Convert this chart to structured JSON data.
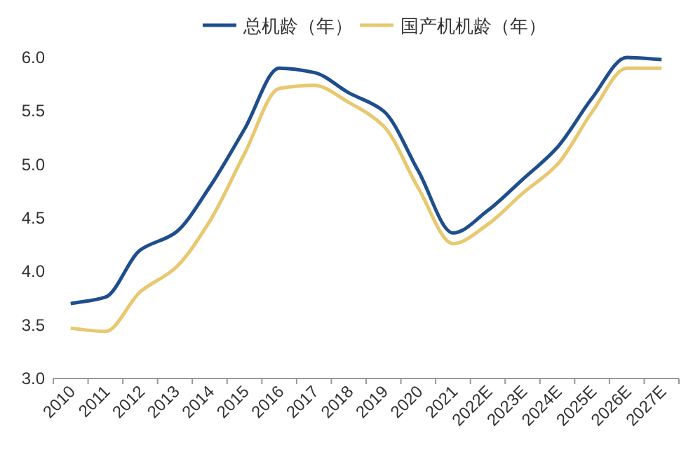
{
  "chart_data": {
    "type": "line",
    "categories": [
      "2010",
      "2011",
      "2012",
      "2013",
      "2014",
      "2015",
      "2016",
      "2017",
      "2018",
      "2019",
      "2020",
      "2021",
      "2022E",
      "2023E",
      "2024E",
      "2025E",
      "2026E",
      "2027E"
    ],
    "series": [
      {
        "name": "总机龄（年）",
        "color": "#1f4e8c",
        "values": [
          3.7,
          3.76,
          4.2,
          4.36,
          4.79,
          5.33,
          5.9,
          5.86,
          5.67,
          5.5,
          4.94,
          4.36,
          4.57,
          4.86,
          5.16,
          5.62,
          6.0,
          5.98
        ]
      },
      {
        "name": "国产机机龄（年）",
        "color": "#e8c870",
        "values": [
          3.47,
          3.44,
          3.81,
          4.03,
          4.47,
          5.1,
          5.71,
          5.74,
          5.58,
          5.36,
          4.78,
          4.26,
          4.44,
          4.73,
          5.0,
          5.49,
          5.9,
          5.9
        ]
      }
    ],
    "ylim": [
      3.0,
      6.0
    ],
    "yticks": [
      {
        "value": 3,
        "label": "3.0"
      },
      {
        "value": 3.5,
        "label": "3.5"
      },
      {
        "value": 4,
        "label": "4.0"
      },
      {
        "value": 4.5,
        "label": "4.5"
      },
      {
        "value": 5,
        "label": "5.0"
      },
      {
        "value": 5.5,
        "label": "5.5"
      },
      {
        "value": 6,
        "label": "6.0"
      }
    ],
    "grid": false,
    "legend": "top",
    "marker": "none",
    "line_style": "solid"
  }
}
